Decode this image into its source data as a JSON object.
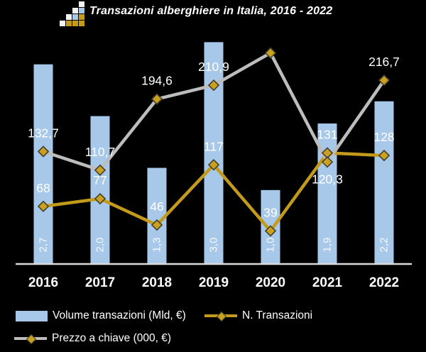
{
  "header": {
    "logo_icon": "stacked-squares-chart-icon",
    "title": "Transazioni alberghiere in Italia, 2016 - 2022"
  },
  "chart_data": {
    "type": "bar",
    "subtype": "combo-bar-line",
    "title": "Transazioni alberghiere in Italia, 2016 - 2022",
    "categories": [
      "2016",
      "2017",
      "2018",
      "2019",
      "2020",
      "2021",
      "2022"
    ],
    "series": [
      {
        "name": "Volume transazioni (Mld, €)",
        "type": "bar",
        "values": [
          2.7,
          2.0,
          1.3,
          3.0,
          1.0,
          1.9,
          2.2
        ],
        "labels": [
          "2,7",
          "2,0",
          "1,3",
          "3,0",
          "1,0",
          "1,9",
          "2,2"
        ],
        "color": "#a8c8e9"
      },
      {
        "name": "N. Transazioni",
        "type": "line",
        "values": [
          68,
          77,
          46,
          117,
          39,
          131,
          128
        ],
        "labels": [
          "68",
          "77",
          "46",
          "117",
          "39",
          "131",
          "128"
        ],
        "label_sides": [
          "above",
          "above",
          "above",
          "above",
          "above",
          "above",
          "above"
        ],
        "color": "#c49a1c"
      },
      {
        "name": "Prezzo a chiave (000, €)",
        "type": "line",
        "values": [
          132.7,
          110.7,
          194.6,
          210.9,
          249,
          120.3,
          216.7
        ],
        "labels": [
          "132,7",
          "110,7",
          "194,6",
          "210,9",
          "",
          "120,3",
          "216,7"
        ],
        "label_sides": [
          "above",
          "above",
          "above",
          "above",
          "none",
          "below",
          "above"
        ],
        "color": "#bdbdbd",
        "note": "2020 point has no data label in chart; value 249 estimated from plot position"
      }
    ],
    "bar_axis": {
      "ylim": [
        0,
        3.57
      ],
      "visible": false
    },
    "line_axis": {
      "ylim": [
        0,
        306
      ],
      "visible": false
    },
    "xlabel": "",
    "ylabel": "",
    "gridlines": false,
    "background": "#000000",
    "axis_line_color": "#d9d9d9",
    "data_label_color": "#ffffff",
    "marker": {
      "shape": "diamond",
      "fill": "#c9a01f",
      "stroke": "#45402e"
    },
    "legend_position": "bottom"
  },
  "legend": {
    "items": [
      {
        "label": "Volume transazioni (Mld, €)",
        "swatch": "blue-bar"
      },
      {
        "label": "N. Transazioni",
        "swatch": "gold-line-diamond"
      },
      {
        "label": "Prezzo a chiave (000, €)",
        "swatch": "gray-line-diamond"
      }
    ]
  },
  "colors": {
    "background": "#000000",
    "bar": "#a8c8e9",
    "gold_line": "#c49a1c",
    "gray_line": "#bdbdbd",
    "text": "#ffffff",
    "axis": "#d9d9d9"
  }
}
